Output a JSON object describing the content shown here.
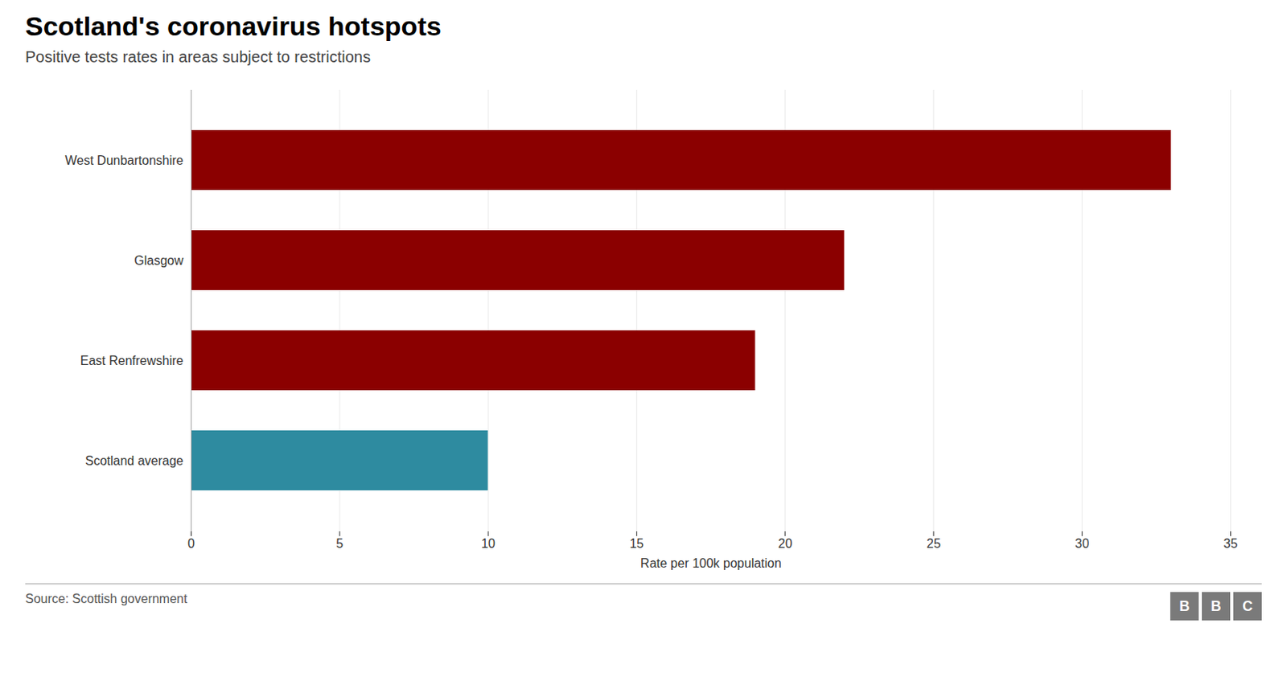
{
  "chart_data": {
    "type": "bar",
    "orientation": "horizontal",
    "title": "Scotland's coronavirus hotspots",
    "subtitle": "Positive tests rates in areas subject to restrictions",
    "categories": [
      "West Dunbartonshire",
      "Glasgow",
      "East Renfrewshire",
      "Scotland average"
    ],
    "values": [
      33,
      22,
      19,
      10
    ],
    "colors": [
      "#8B0000",
      "#8B0000",
      "#8B0000",
      "#2E8BA0"
    ],
    "xlim": [
      0,
      35
    ],
    "xticks": [
      0,
      5,
      10,
      15,
      20,
      25,
      30,
      35
    ],
    "xlabel": "Rate per 100k population",
    "grid": true,
    "source": "Source: Scottish government",
    "annotations": [
      "BBC"
    ]
  }
}
